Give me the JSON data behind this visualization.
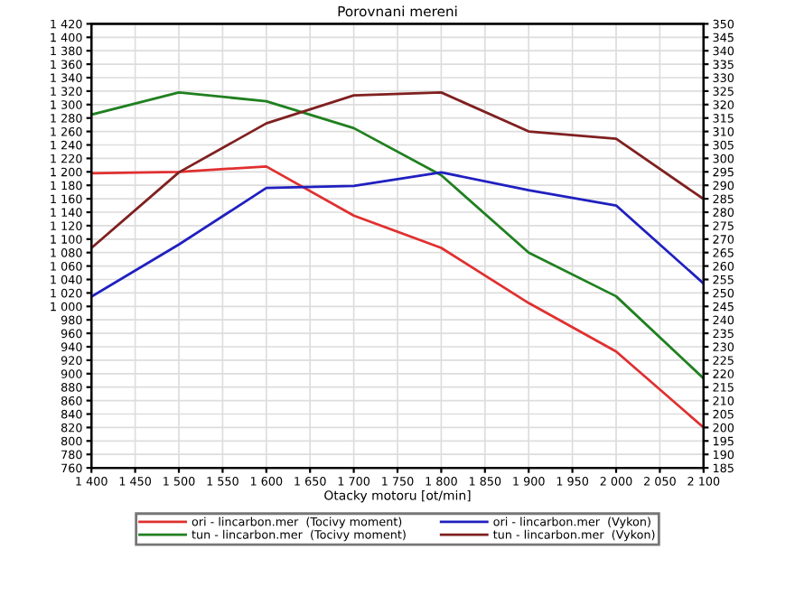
{
  "chart_data": {
    "type": "line",
    "title": "Porovnani mereni",
    "xlabel": "Otacky motoru [ot/min]",
    "x": [
      1400,
      1500,
      1600,
      1700,
      1800,
      1900,
      2000,
      2100
    ],
    "series": [
      {
        "name": "ori - lincarbon.mer  (Tocivy moment)",
        "color": "#e03030",
        "values": [
          1198,
          1200,
          1208,
          1135,
          1087,
          1005,
          933,
          820
        ]
      },
      {
        "name": "tun - lincarbon.mer  (Tocivy moment)",
        "color": "#208020",
        "values": [
          1285,
          1318,
          1305,
          1265,
          1195,
          1080,
          1015,
          893
        ]
      },
      {
        "name": "ori - lincarbon.mer  (Vykon)",
        "color": "#2020c0",
        "axis": "y2",
        "values": [
          248.6,
          268,
          289,
          289.8,
          294.8,
          288.2,
          282.5,
          253.5
        ]
      },
      {
        "name": "tun - lincarbon.mer  (Vykon)",
        "color": "#802020",
        "axis": "y2",
        "values": [
          266.7,
          294.8,
          313,
          323.4,
          324.5,
          310,
          307.3,
          284.9
        ]
      }
    ],
    "xlim": [
      1400,
      2100
    ],
    "xticks": [
      {
        "value": 1400,
        "label": "1 400"
      },
      {
        "value": 1450,
        "label": "1 450"
      },
      {
        "value": 1500,
        "label": "1 500"
      },
      {
        "value": 1550,
        "label": "1 550"
      },
      {
        "value": 1600,
        "label": "1 600"
      },
      {
        "value": 1650,
        "label": "1 650"
      },
      {
        "value": 1700,
        "label": "1 700"
      },
      {
        "value": 1750,
        "label": "1 750"
      },
      {
        "value": 1800,
        "label": "1 800"
      },
      {
        "value": 1850,
        "label": "1 850"
      },
      {
        "value": 1900,
        "label": "1 900"
      },
      {
        "value": 1950,
        "label": "1 950"
      },
      {
        "value": 2000,
        "label": "2 000"
      },
      {
        "value": 2050,
        "label": "2 050"
      },
      {
        "value": 2100,
        "label": "2 100"
      }
    ],
    "ylim": [
      760,
      1420
    ],
    "yticks": [
      760,
      780,
      800,
      820,
      840,
      860,
      880,
      900,
      920,
      940,
      960,
      980,
      {
        "value": 1000,
        "label": "1 000"
      },
      {
        "value": 1020,
        "label": "1 020"
      },
      {
        "value": 1040,
        "label": "1 040"
      },
      {
        "value": 1060,
        "label": "1 060"
      },
      {
        "value": 1080,
        "label": "1 080"
      },
      {
        "value": 1100,
        "label": "1 100"
      },
      {
        "value": 1120,
        "label": "1 120"
      },
      {
        "value": 1140,
        "label": "1 140"
      },
      {
        "value": 1160,
        "label": "1 160"
      },
      {
        "value": 1180,
        "label": "1 180"
      },
      {
        "value": 1200,
        "label": "1 200"
      },
      {
        "value": 1220,
        "label": "1 220"
      },
      {
        "value": 1240,
        "label": "1 240"
      },
      {
        "value": 1260,
        "label": "1 260"
      },
      {
        "value": 1280,
        "label": "1 280"
      },
      {
        "value": 1300,
        "label": "1 300"
      },
      {
        "value": 1320,
        "label": "1 320"
      },
      {
        "value": 1340,
        "label": "1 340"
      },
      {
        "value": 1360,
        "label": "1 360"
      },
      {
        "value": 1380,
        "label": "1 380"
      },
      {
        "value": 1400,
        "label": "1 400"
      },
      {
        "value": 1420,
        "label": "1 420"
      }
    ],
    "y2lim": [
      185,
      350
    ],
    "y2ticks": [
      185,
      190,
      195,
      200,
      205,
      210,
      215,
      220,
      225,
      230,
      235,
      240,
      245,
      250,
      255,
      260,
      265,
      270,
      275,
      280,
      285,
      290,
      295,
      300,
      305,
      310,
      315,
      320,
      325,
      330,
      335,
      340,
      345,
      350
    ],
    "grid": true,
    "legend": "bottom",
    "marker": "none",
    "line_style": "solid"
  }
}
